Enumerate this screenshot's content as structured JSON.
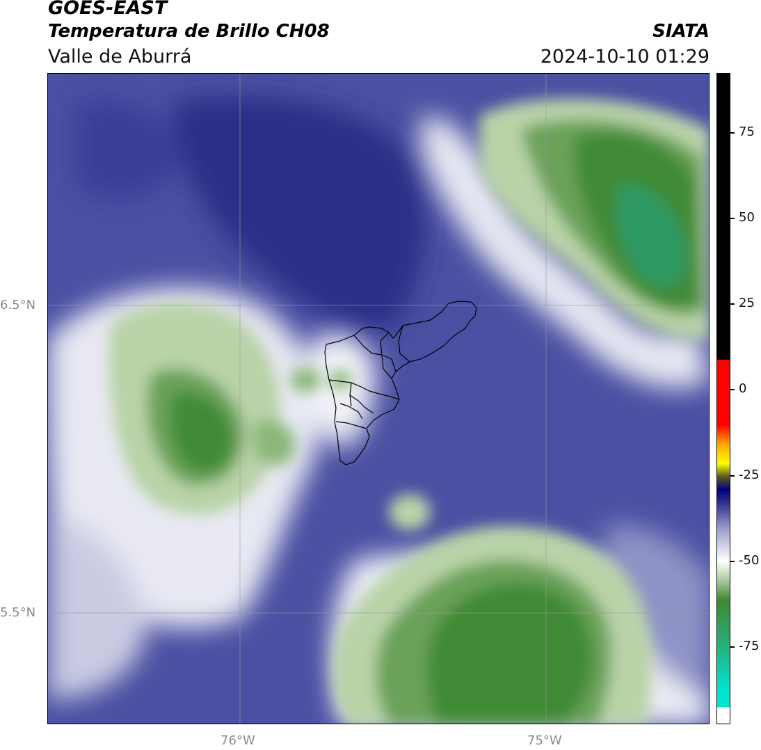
{
  "header": {
    "satellite": "GOES-EAST",
    "product": "Temperatura de Brillo CH08",
    "brand": "SIATA",
    "region": "Valle de Aburrá",
    "datetime": "2024-10-10 01:29"
  },
  "map": {
    "lat_labels": [
      "6.5°N",
      "5.5°N"
    ],
    "lon_labels": [
      "76°W",
      "75°W"
    ],
    "colors": {
      "deep_blue": "#2a2d86",
      "blue": "#4b50a2",
      "light_blue": "#8f93c6",
      "pale": "#d6d8ea",
      "white": "#ffffff",
      "green_light": "#b9d3a8",
      "green_mid": "#6aa25a",
      "green_dark": "#3f8a35",
      "teal": "#2e9a63",
      "boundary": "#000000",
      "grid": "#9a9a9a"
    }
  },
  "colorbar": {
    "ticks": [
      "75",
      "50",
      "25",
      "0",
      "-25",
      "-50",
      "-75"
    ],
    "gradient": [
      "#ffffff",
      "#00e5d0",
      "#2aa96f",
      "#3c8a30",
      "#a8c99a",
      "#ffffff",
      "#9a9ccc",
      "#2d2f8e",
      "#000080",
      "#5a5a20",
      "#ffff00",
      "#ffa500",
      "#ff0000",
      "#000000"
    ]
  }
}
